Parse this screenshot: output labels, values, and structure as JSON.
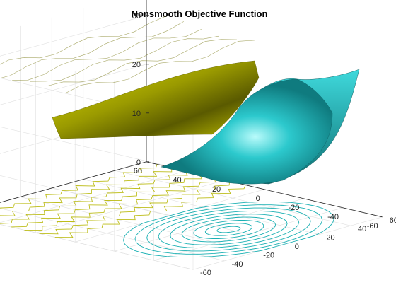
{
  "chart_data": {
    "type": "surface",
    "title": "Nonsmooth Objective Function",
    "xlabel": "",
    "ylabel": "",
    "zlabel": "",
    "x_ticks": [
      "60",
      "40",
      "20",
      "0",
      "-20",
      "-40",
      "-60"
    ],
    "y_ticks": [
      "-60",
      "-40",
      "-20",
      "0",
      "20",
      "40",
      "60"
    ],
    "z_ticks": [
      "0",
      "10",
      "20",
      "30"
    ],
    "xlim": [
      -60,
      60
    ],
    "ylim": [
      -60,
      60
    ],
    "zlim": [
      0,
      35
    ],
    "grid": true,
    "contours_on_floor": true,
    "surfaces": [
      {
        "region": "left",
        "x_range": [
          0,
          60
        ],
        "y_range": [
          -60,
          60
        ],
        "level": 30,
        "form": "nearly flat plane with small periodic ripples",
        "colormap": "yellow"
      },
      {
        "region": "right",
        "x_range": [
          -60,
          0
        ],
        "y_range": [
          -60,
          60
        ],
        "minimum": 0,
        "maximum_shown": 32,
        "form": "bowl (paraboloid) opening upward",
        "colormap": "cyan"
      }
    ],
    "colors": {
      "yellow_surface": "#d6d600",
      "cyan_surface": "#19c3c8",
      "yellow_contour": "#bdbd1a",
      "cyan_contour": "#1ab0b3"
    }
  }
}
